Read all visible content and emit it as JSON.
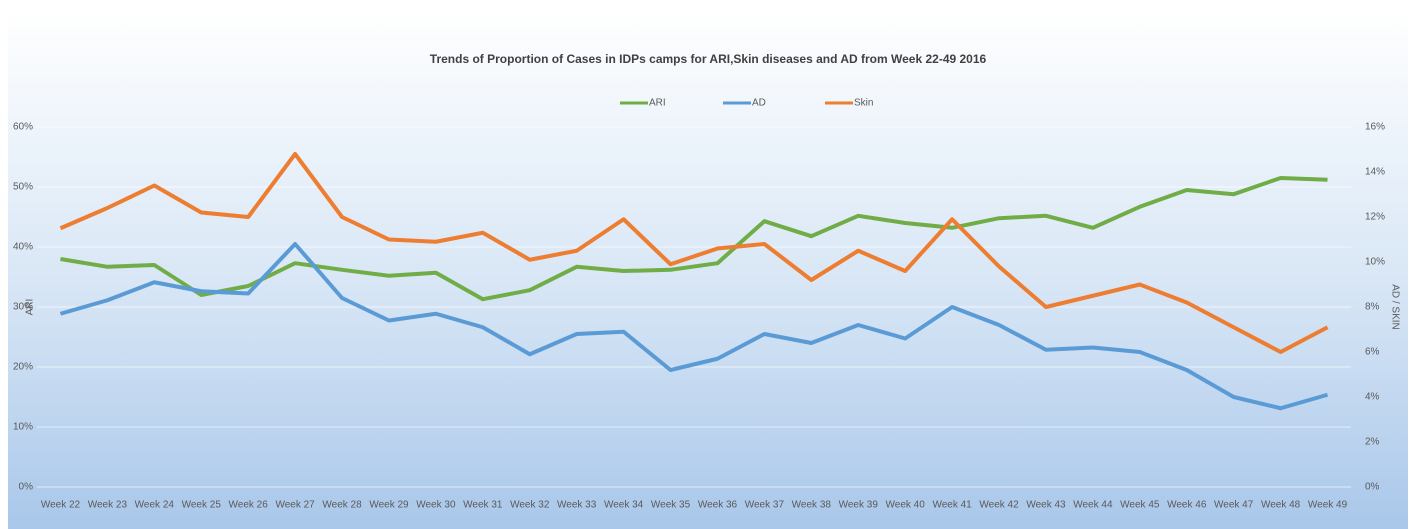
{
  "chart_data": {
    "type": "line",
    "title": "Trends of Proportion of Cases in IDPs camps for ARI,Skin diseases and AD from Week  22-49 2016",
    "y_label": "ARI",
    "y2_label": "AD / SKIN",
    "categories": [
      "Week 22",
      "Week 23",
      "Week 24",
      "Week 25",
      "Week 26",
      "Week 27",
      "Week 28",
      "Week 29",
      "Week 30",
      "Week 31",
      "Week 32",
      "Week 33",
      "Week 34",
      "Week 35",
      "Week 36",
      "Week 37",
      "Week 38",
      "Week 39",
      "Week 40",
      "Week 41",
      "Week 42",
      "Week 43",
      "Week 44",
      "Week 45",
      "Week 46",
      "Week 47",
      "Week 48",
      "Week 49"
    ],
    "series": [
      {
        "name": "ARI",
        "color": "#70ad47",
        "axis": "y",
        "values": [
          38,
          36.7,
          37,
          32,
          33.5,
          37.3,
          36.2,
          35.2,
          35.7,
          31.3,
          32.8,
          36.7,
          36,
          36.2,
          37.3,
          44.3,
          41.8,
          45.2,
          44,
          43.2,
          44.8,
          45.2,
          43.2,
          46.7,
          49.5,
          48.8,
          51.5,
          51.2
        ]
      },
      {
        "name": "AD",
        "color": "#5b9bd5",
        "axis": "y2",
        "values": [
          7.7,
          8.3,
          9.1,
          8.7,
          8.6,
          10.8,
          8.4,
          7.4,
          7.7,
          7.1,
          5.9,
          6.8,
          6.9,
          5.2,
          5.7,
          6.8,
          6.4,
          7.2,
          6.6,
          8,
          7.2,
          6.1,
          6.2,
          6,
          5.2,
          4,
          3.5,
          4.1
        ]
      },
      {
        "name": "Skin",
        "color": "#ed7d31",
        "axis": "y2",
        "values": [
          11.5,
          12.4,
          13.4,
          12.2,
          12,
          14.8,
          12,
          11,
          10.9,
          11.3,
          10.1,
          10.5,
          11.9,
          9.9,
          10.6,
          10.8,
          9.2,
          10.5,
          9.6,
          11.9,
          9.8,
          8,
          8.5,
          9,
          8.2,
          7.1,
          6,
          7.1
        ]
      }
    ],
    "ylim": [
      0,
      60
    ],
    "yticks": [
      {
        "value": 0,
        "label": "0%"
      },
      {
        "value": 10,
        "label": "10%"
      },
      {
        "value": 20,
        "label": "20%"
      },
      {
        "value": 30,
        "label": "30%"
      },
      {
        "value": 40,
        "label": "40%"
      },
      {
        "value": 50,
        "label": "50%"
      },
      {
        "value": 60,
        "label": "60%"
      }
    ],
    "y2lim": [
      0,
      16
    ],
    "y2ticks": [
      {
        "value": 0,
        "label": "0%"
      },
      {
        "value": 2,
        "label": "2%"
      },
      {
        "value": 4,
        "label": "4%"
      },
      {
        "value": 6,
        "label": "6%"
      },
      {
        "value": 8,
        "label": "8%"
      },
      {
        "value": 10,
        "label": "10%"
      },
      {
        "value": 12,
        "label": "12%"
      },
      {
        "value": 14,
        "label": "14%"
      },
      {
        "value": 16,
        "label": "16%"
      }
    ],
    "grid": true,
    "legend": "top"
  }
}
